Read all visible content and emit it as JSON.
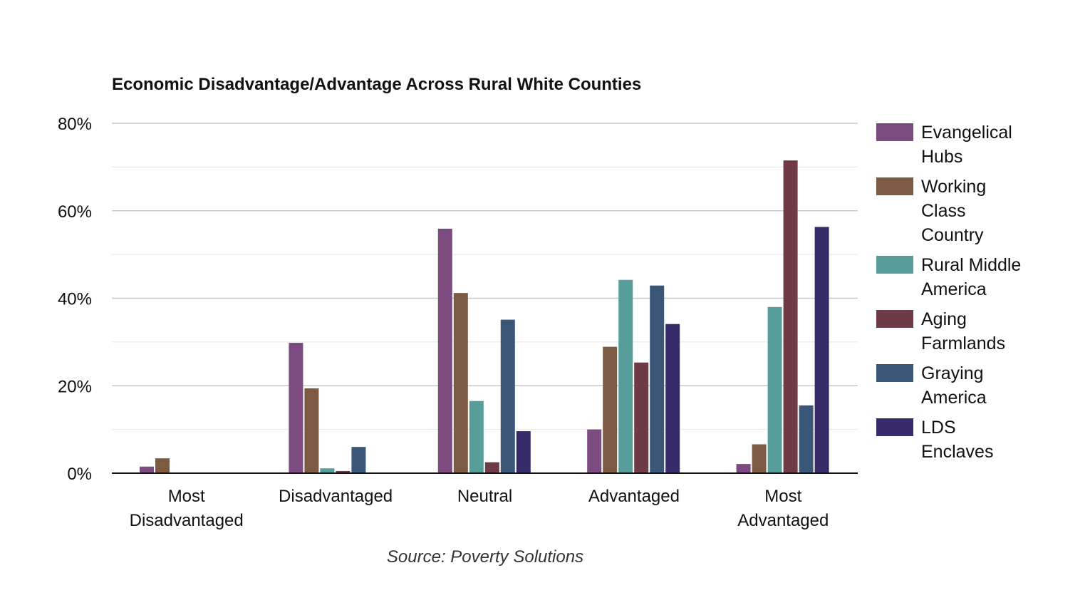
{
  "chart_data": {
    "type": "bar",
    "title": "Economic Disadvantage/Advantage Across Rural White Counties",
    "source": "Source: Poverty Solutions",
    "categories": [
      "Most Disadvantaged",
      "Disadvantaged",
      "Neutral",
      "Advantaged",
      "Most Advantaged"
    ],
    "y_ticks": [
      "0%",
      "20%",
      "40%",
      "60%",
      "80%"
    ],
    "ylim": [
      0,
      80
    ],
    "y_unit": "%",
    "grid": true,
    "legend_position": "right",
    "series": [
      {
        "name": "Evangelical Hubs",
        "color": "#7b4a7e",
        "values": [
          1.5,
          29.8,
          55.9,
          10.0,
          2.1
        ]
      },
      {
        "name": "Working Class Country",
        "color": "#7d5a42",
        "values": [
          3.4,
          19.4,
          41.2,
          28.9,
          6.6
        ]
      },
      {
        "name": "Rural Middle America",
        "color": "#579e9a",
        "values": [
          0,
          1.1,
          16.5,
          44.2,
          38.0
        ]
      },
      {
        "name": "Aging Farmlands",
        "color": "#6e3a45",
        "values": [
          0,
          0.5,
          2.5,
          25.3,
          71.5
        ]
      },
      {
        "name": "Graying America",
        "color": "#3b5778",
        "values": [
          0,
          6.0,
          35.1,
          42.9,
          15.5
        ]
      },
      {
        "name": "LDS Enclaves",
        "color": "#372c69",
        "values": [
          0,
          0,
          9.6,
          34.1,
          56.3
        ]
      }
    ]
  }
}
